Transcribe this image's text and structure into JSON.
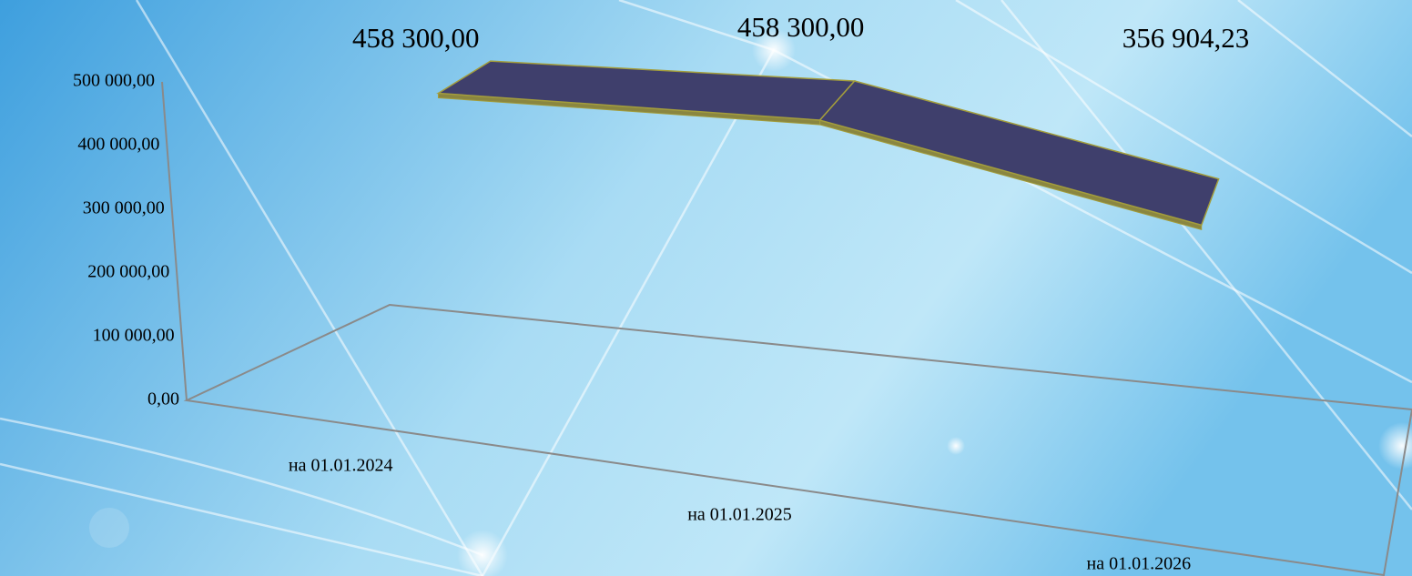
{
  "chart_data": {
    "type": "line3d",
    "categories": [
      "на 01.01.2024",
      "на 01.01.2025",
      "на 01.01.2026"
    ],
    "values": [
      458300,
      458300,
      356904.23
    ],
    "value_labels": [
      "458 300,00",
      "458 300,00",
      "356 904,23"
    ],
    "color": "#3f3f6c",
    "edge_color": "#a39d3c",
    "ylim": [
      0,
      500000
    ],
    "yticks": [
      {
        "value": 0,
        "label": "0,00"
      },
      {
        "value": 100000,
        "label": "100 000,00"
      },
      {
        "value": 200000,
        "label": "200 000,00"
      },
      {
        "value": 300000,
        "label": "300 000,00"
      },
      {
        "value": 400000,
        "label": "400 000,00"
      },
      {
        "value": 500000,
        "label": "500 000,00"
      }
    ],
    "grid": false
  }
}
